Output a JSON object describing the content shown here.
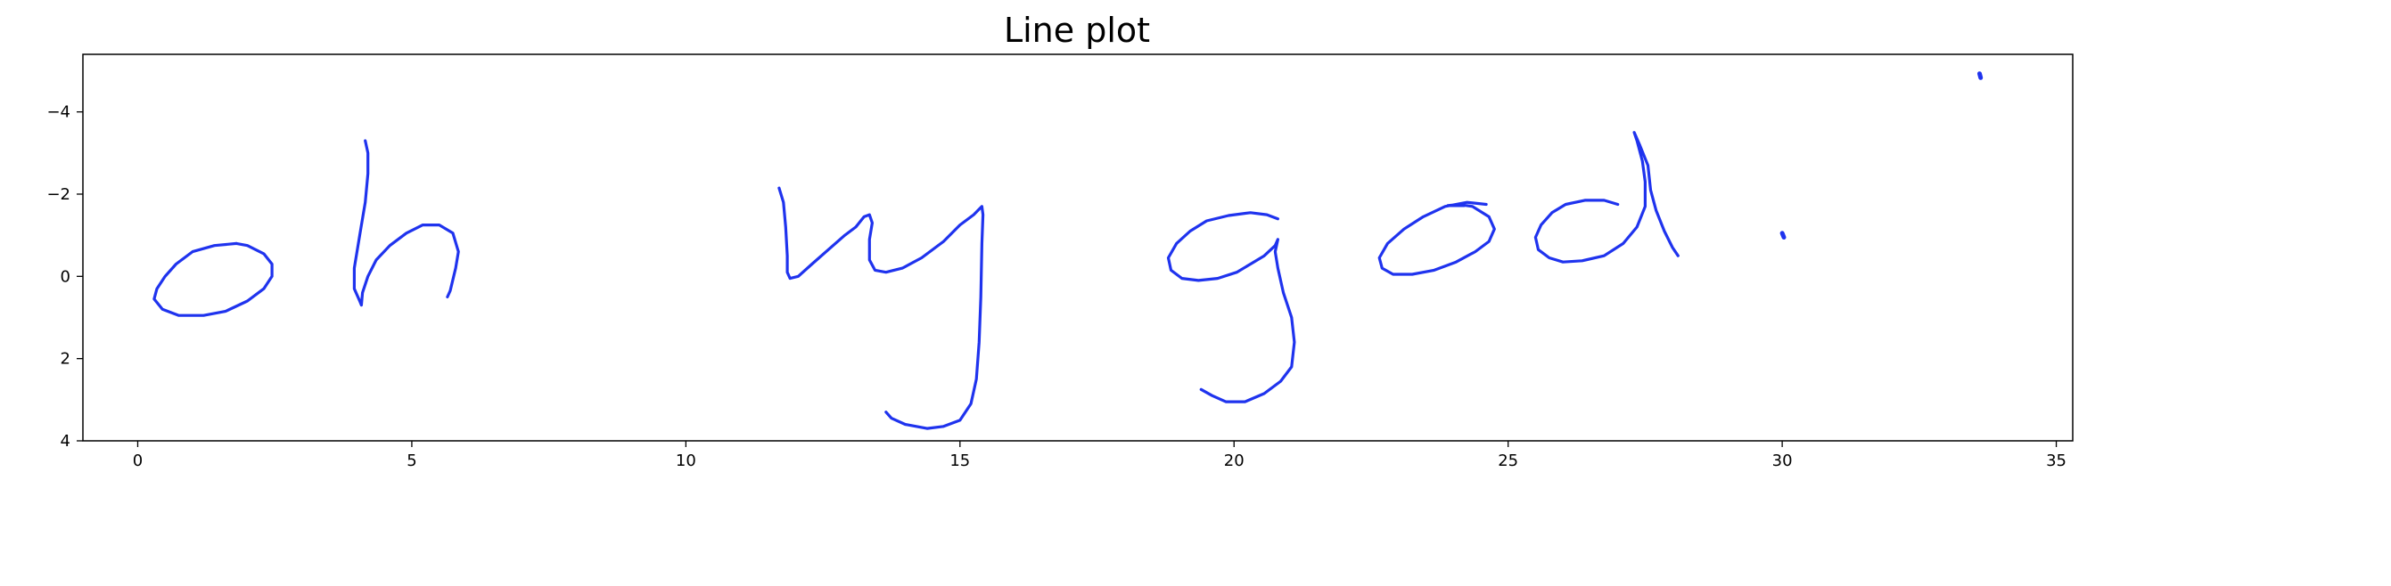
{
  "chart_data": {
    "type": "line",
    "title": "Line plot",
    "xlabel": "",
    "ylabel": "",
    "xlim": [
      -1.0,
      35.3
    ],
    "ylim": [
      4.0,
      -5.4
    ],
    "y_inverted": true,
    "grid": false,
    "color": "#1f33ee",
    "xticks": [
      0,
      5,
      10,
      15,
      20,
      25,
      30,
      35
    ],
    "yticks": [
      -4,
      -2,
      0,
      2,
      4
    ],
    "ytick_labels": [
      "−4",
      "−2",
      "0",
      "2",
      "4"
    ],
    "strokes": [
      [
        [
          1.8,
          -0.8
        ],
        [
          1.4,
          -0.75
        ],
        [
          1.0,
          -0.6
        ],
        [
          0.7,
          -0.3
        ],
        [
          0.5,
          0.0
        ],
        [
          0.35,
          0.3
        ],
        [
          0.3,
          0.55
        ],
        [
          0.45,
          0.8
        ],
        [
          0.75,
          0.95
        ],
        [
          1.2,
          0.95
        ],
        [
          1.6,
          0.85
        ],
        [
          2.0,
          0.6
        ],
        [
          2.3,
          0.3
        ],
        [
          2.45,
          0.0
        ],
        [
          2.45,
          -0.3
        ],
        [
          2.3,
          -0.55
        ],
        [
          2.0,
          -0.75
        ],
        [
          1.8,
          -0.8
        ]
      ],
      [
        [
          4.15,
          -3.3
        ],
        [
          4.2,
          -3.0
        ],
        [
          4.2,
          -2.5
        ],
        [
          4.15,
          -1.8
        ],
        [
          4.05,
          -1.0
        ],
        [
          3.95,
          -0.2
        ],
        [
          3.95,
          0.3
        ],
        [
          4.05,
          0.6
        ],
        [
          4.08,
          0.7
        ],
        [
          4.1,
          0.4
        ],
        [
          4.2,
          0.0
        ],
        [
          4.35,
          -0.4
        ],
        [
          4.6,
          -0.75
        ],
        [
          4.9,
          -1.05
        ],
        [
          5.2,
          -1.25
        ],
        [
          5.5,
          -1.25
        ],
        [
          5.75,
          -1.05
        ],
        [
          5.85,
          -0.6
        ],
        [
          5.8,
          -0.2
        ],
        [
          5.7,
          0.35
        ],
        [
          5.65,
          0.5
        ]
      ],
      [
        [
          11.7,
          -2.15
        ],
        [
          11.78,
          -1.8
        ],
        [
          11.82,
          -1.2
        ],
        [
          11.85,
          -0.5
        ],
        [
          11.85,
          -0.1
        ],
        [
          11.9,
          0.05
        ],
        [
          12.05,
          0.0
        ],
        [
          12.3,
          -0.3
        ],
        [
          12.6,
          -0.65
        ],
        [
          12.9,
          -1.0
        ],
        [
          13.1,
          -1.2
        ],
        [
          13.25,
          -1.45
        ],
        [
          13.35,
          -1.5
        ],
        [
          13.4,
          -1.3
        ],
        [
          13.35,
          -0.9
        ],
        [
          13.35,
          -0.4
        ],
        [
          13.45,
          -0.15
        ],
        [
          13.65,
          -0.1
        ],
        [
          13.95,
          -0.2
        ],
        [
          14.3,
          -0.45
        ],
        [
          14.7,
          -0.85
        ],
        [
          15.0,
          -1.25
        ],
        [
          15.25,
          -1.5
        ],
        [
          15.4,
          -1.7
        ],
        [
          15.42,
          -1.5
        ],
        [
          15.4,
          -0.8
        ],
        [
          15.38,
          0.5
        ],
        [
          15.35,
          1.6
        ],
        [
          15.3,
          2.5
        ],
        [
          15.2,
          3.1
        ],
        [
          15.0,
          3.5
        ],
        [
          14.7,
          3.65
        ],
        [
          14.4,
          3.7
        ],
        [
          14.0,
          3.6
        ],
        [
          13.75,
          3.45
        ],
        [
          13.65,
          3.3
        ]
      ],
      [
        [
          20.8,
          -1.4
        ],
        [
          20.6,
          -1.5
        ],
        [
          20.3,
          -1.55
        ],
        [
          19.9,
          -1.48
        ],
        [
          19.5,
          -1.35
        ],
        [
          19.2,
          -1.1
        ],
        [
          18.95,
          -0.8
        ],
        [
          18.8,
          -0.45
        ],
        [
          18.85,
          -0.15
        ],
        [
          19.05,
          0.05
        ],
        [
          19.35,
          0.1
        ],
        [
          19.7,
          0.05
        ],
        [
          20.05,
          -0.1
        ],
        [
          20.3,
          -0.3
        ],
        [
          20.55,
          -0.5
        ],
        [
          20.75,
          -0.75
        ],
        [
          20.8,
          -0.9
        ],
        [
          20.75,
          -0.6
        ],
        [
          20.8,
          -0.2
        ],
        [
          20.9,
          0.4
        ],
        [
          21.05,
          1.0
        ],
        [
          21.1,
          1.6
        ],
        [
          21.05,
          2.2
        ],
        [
          20.85,
          2.55
        ],
        [
          20.55,
          2.85
        ],
        [
          20.2,
          3.05
        ],
        [
          19.85,
          3.05
        ],
        [
          19.6,
          2.9
        ],
        [
          19.4,
          2.75
        ]
      ],
      [
        [
          24.6,
          -1.75
        ],
        [
          24.25,
          -1.8
        ],
        [
          23.85,
          -1.7
        ],
        [
          23.45,
          -1.45
        ],
        [
          23.1,
          -1.15
        ],
        [
          22.8,
          -0.8
        ],
        [
          22.65,
          -0.45
        ],
        [
          22.7,
          -0.2
        ],
        [
          22.9,
          -0.05
        ],
        [
          23.25,
          -0.05
        ],
        [
          23.65,
          -0.15
        ],
        [
          24.05,
          -0.35
        ],
        [
          24.4,
          -0.6
        ],
        [
          24.65,
          -0.85
        ],
        [
          24.75,
          -1.15
        ],
        [
          24.65,
          -1.45
        ],
        [
          24.35,
          -1.7
        ],
        [
          24.1,
          -1.75
        ],
        [
          23.9,
          -1.72
        ],
        [
          24.2,
          -1.72
        ]
      ],
      [
        [
          27.0,
          -1.75
        ],
        [
          26.75,
          -1.85
        ],
        [
          26.4,
          -1.85
        ],
        [
          26.05,
          -1.75
        ],
        [
          25.8,
          -1.55
        ],
        [
          25.6,
          -1.25
        ],
        [
          25.5,
          -0.95
        ],
        [
          25.55,
          -0.65
        ],
        [
          25.75,
          -0.45
        ],
        [
          26.0,
          -0.35
        ],
        [
          26.35,
          -0.38
        ],
        [
          26.75,
          -0.5
        ],
        [
          27.1,
          -0.8
        ],
        [
          27.35,
          -1.2
        ],
        [
          27.5,
          -1.7
        ],
        [
          27.5,
          -2.3
        ],
        [
          27.45,
          -2.8
        ],
        [
          27.35,
          -3.3
        ],
        [
          27.3,
          -3.5
        ],
        [
          27.4,
          -3.2
        ],
        [
          27.55,
          -2.7
        ],
        [
          27.6,
          -2.1
        ],
        [
          27.7,
          -1.6
        ],
        [
          27.85,
          -1.1
        ],
        [
          28.0,
          -0.7
        ],
        [
          28.1,
          -0.5
        ]
      ],
      [
        [
          30.0,
          -1.05
        ],
        [
          30.03,
          -0.95
        ]
      ],
      [
        [
          33.6,
          -4.93
        ],
        [
          33.62,
          -4.83
        ]
      ]
    ]
  }
}
